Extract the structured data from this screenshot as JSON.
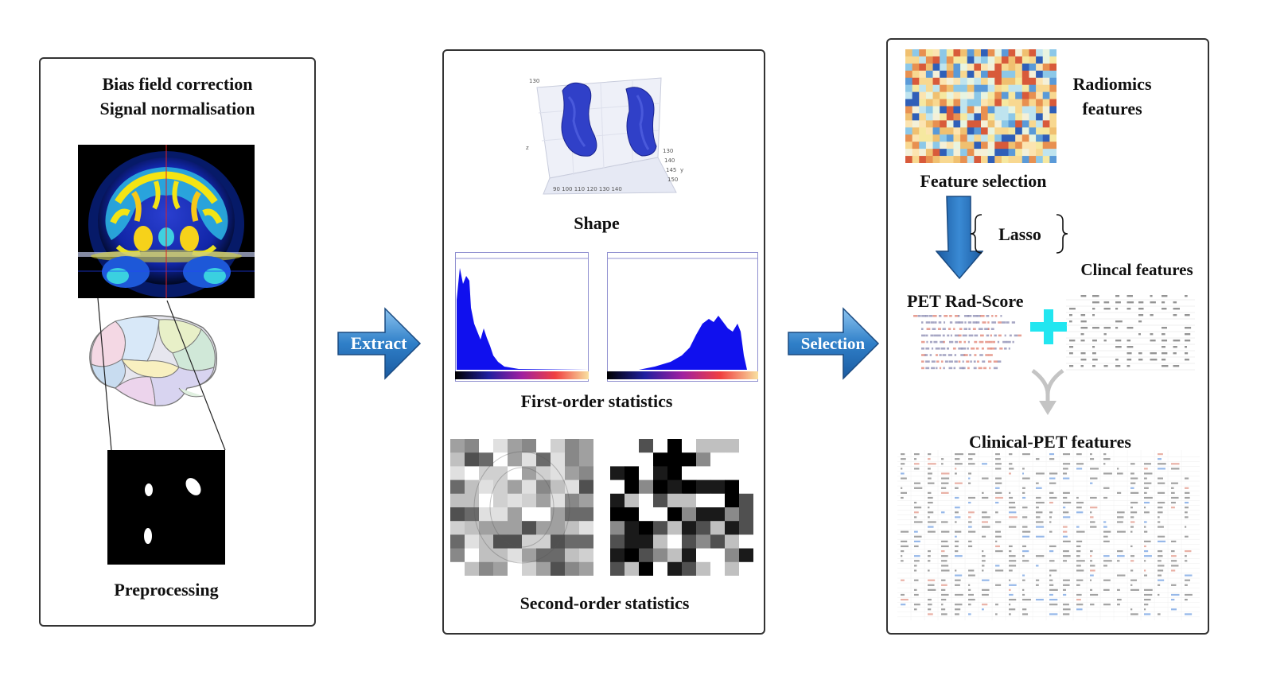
{
  "panel1": {
    "title_line1": "Bias field correction",
    "title_line2": "Signal normalisation",
    "caption": "Preprocessing"
  },
  "arrow1": {
    "label": "Extract"
  },
  "panel2": {
    "shape_caption": "Shape",
    "first_order_caption": "First-order statistics",
    "second_order_caption": "Second-order statistics"
  },
  "arrow2": {
    "label": "Selection"
  },
  "panel3": {
    "radiomics_line1": "Radiomics",
    "radiomics_line2": "features",
    "feature_selection": "Feature selection",
    "lasso": "Lasso",
    "clinical_features": "Clincal features",
    "pet_rad_score": "PET Rad-Score",
    "clinical_pet_features": "Clinical-PET features"
  },
  "colors": {
    "arrow_blue": "#2f7fc8",
    "plus_cyan": "#22e6f0",
    "histogram_blue": "#1010ee",
    "brain_blob": "#3040c8"
  }
}
